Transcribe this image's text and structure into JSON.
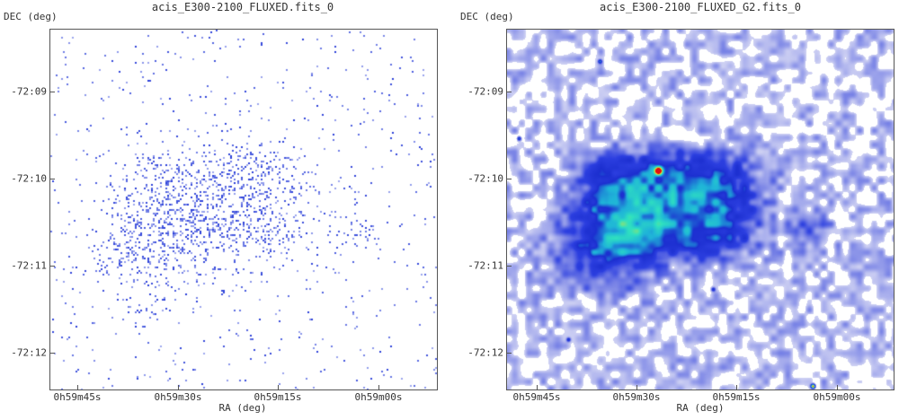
{
  "panels": [
    {
      "title": "acis_E300-2100_FLUXED.fits_0",
      "ylabel": "DEC (deg)",
      "xlabel": "RA (deg)",
      "yticks": [
        "-72:09",
        "-72:10",
        "-72:11",
        "-72:12"
      ],
      "xticks": [
        "0h59m45s",
        "0h59m30s",
        "0h59m15s",
        "0h59m00s"
      ],
      "style": "raw-events"
    },
    {
      "title": "acis_E300-2100_FLUXED_G2.fits_0",
      "ylabel": "DEC (deg)",
      "xlabel": "RA (deg)",
      "yticks": [
        "-72:09",
        "-72:10",
        "-72:11",
        "-72:12"
      ],
      "xticks": [
        "0h59m45s",
        "0h59m30s",
        "0h59m15s",
        "0h59m00s"
      ],
      "style": "smoothed"
    }
  ],
  "colors": {
    "event_blue": "#2a3fd9",
    "background": "#ffffff",
    "colormap": [
      "#ffffff",
      "#c9ccf2",
      "#7b85e6",
      "#2c3fe0",
      "#1c2fd0",
      "#1fb4d8",
      "#2fe0c0",
      "#9be06b",
      "#ffd21a",
      "#e01010"
    ]
  }
}
